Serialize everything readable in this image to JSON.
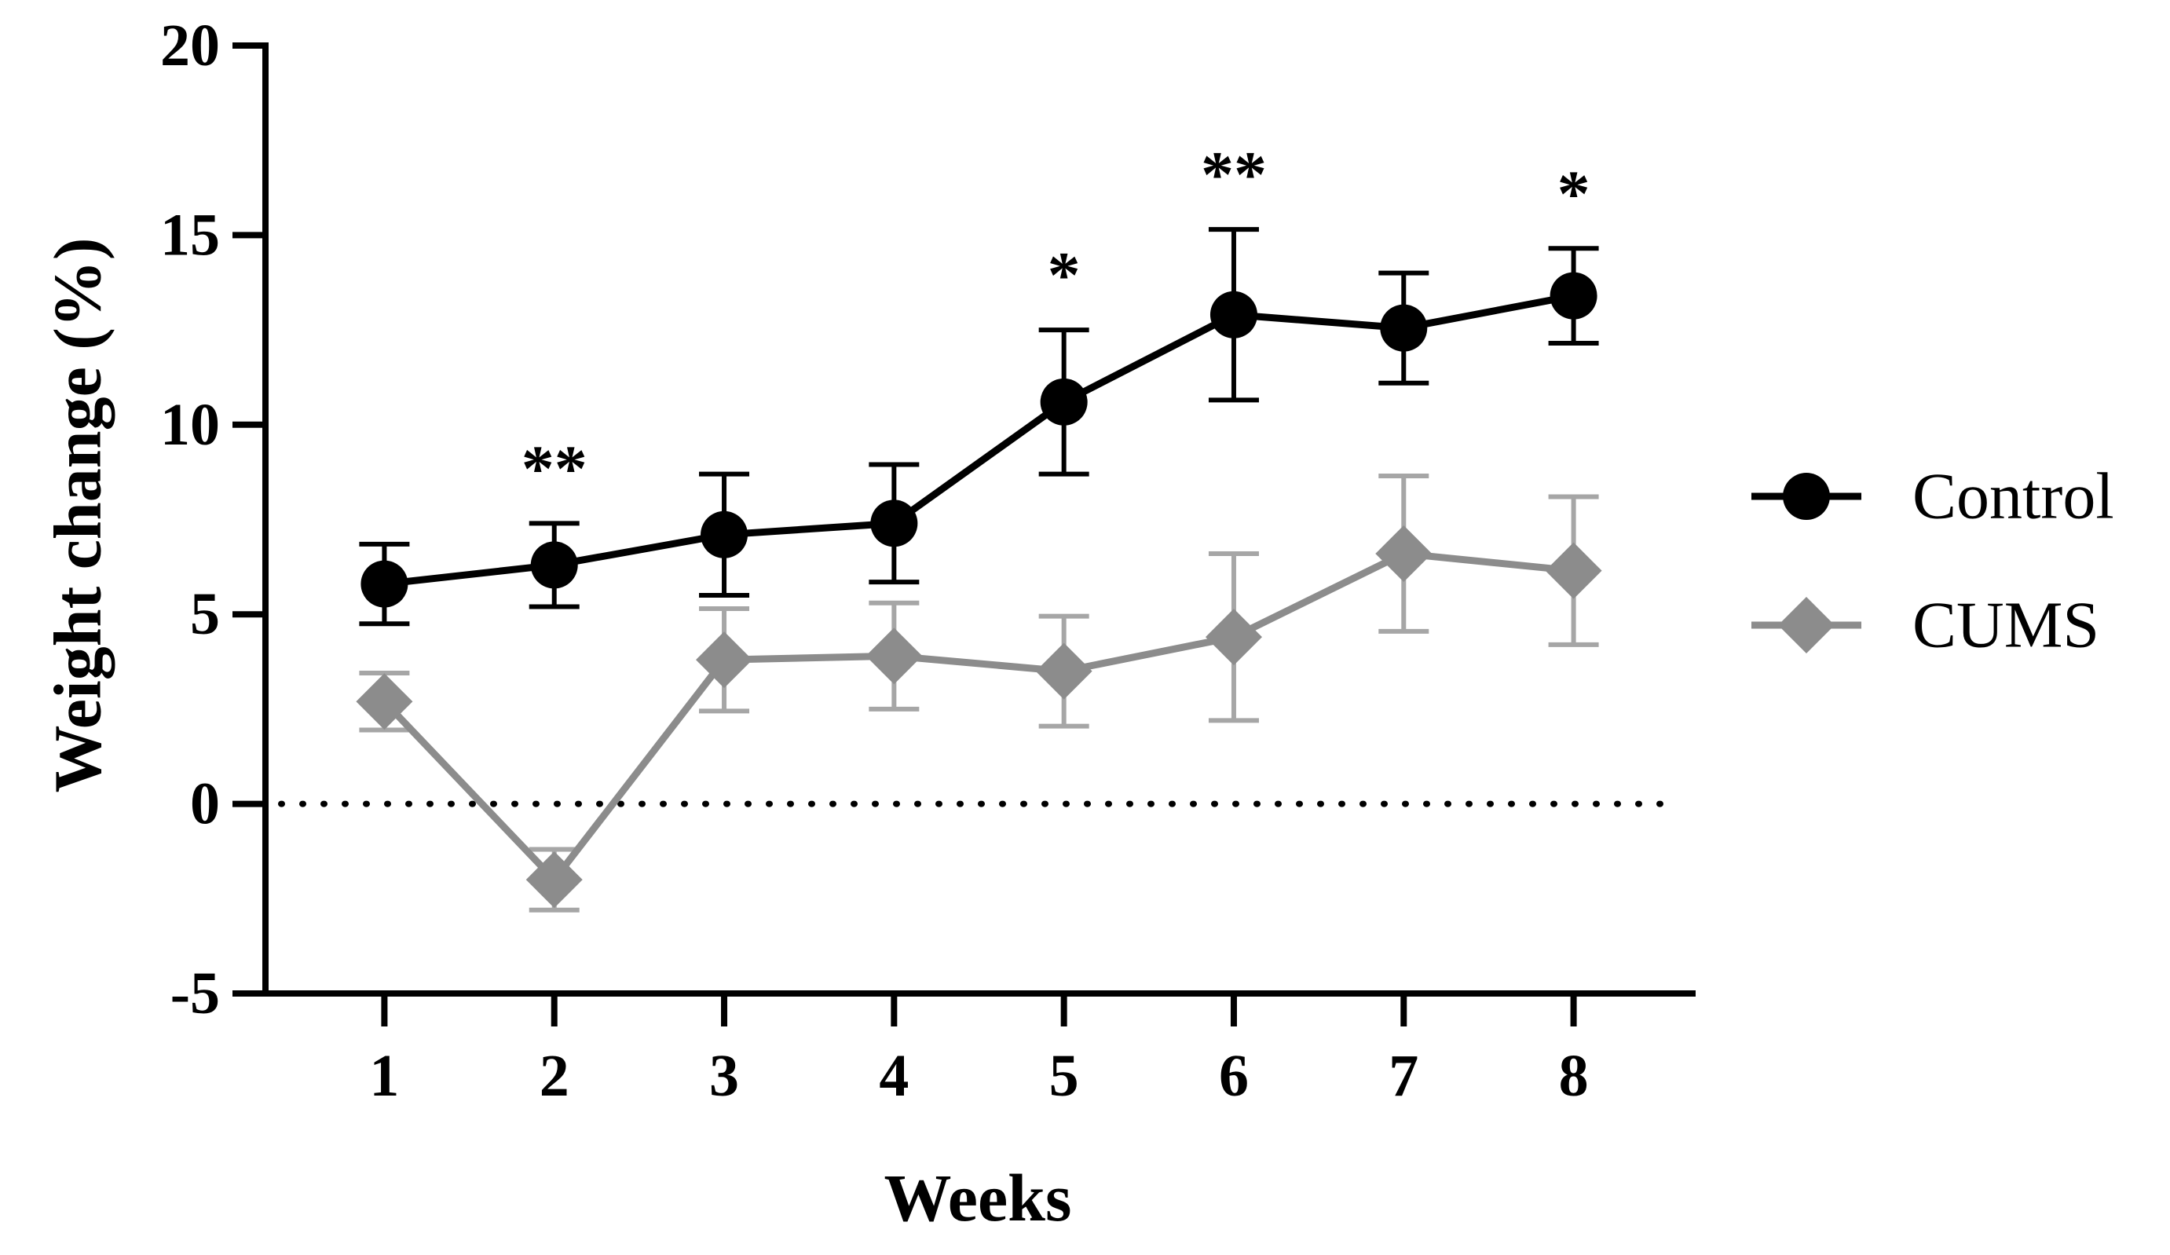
{
  "chart_data": {
    "type": "line",
    "title": "",
    "xlabel": "Weeks",
    "ylabel": "Weight change (%)",
    "x": [
      1,
      2,
      3,
      4,
      5,
      6,
      7,
      8
    ],
    "x_tick_labels": [
      "1",
      "2",
      "3",
      "4",
      "5",
      "6",
      "7",
      "8"
    ],
    "y_ticks": [
      -5,
      0,
      5,
      10,
      15,
      20
    ],
    "y_tick_labels": [
      "-5",
      "0",
      "5",
      "10",
      "15",
      "20"
    ],
    "ylim": [
      -5,
      20
    ],
    "xlim": [
      0.3,
      8.7
    ],
    "reference_line": {
      "y": 0,
      "style": "dotted"
    },
    "grid": false,
    "legend_position": "right",
    "series": [
      {
        "name": "Control",
        "marker": "circle",
        "color": "#000000",
        "error_color": "#000000",
        "values": [
          5.8,
          6.3,
          7.1,
          7.4,
          10.6,
          12.9,
          12.55,
          13.4
        ],
        "error": [
          1.05,
          1.1,
          1.6,
          1.55,
          1.9,
          2.25,
          1.45,
          1.25
        ]
      },
      {
        "name": "CUMS",
        "marker": "diamond",
        "color": "#8c8c8c",
        "error_color": "#a6a6a6",
        "values": [
          2.7,
          -2.0,
          3.8,
          3.9,
          3.5,
          4.4,
          6.6,
          6.15
        ],
        "error": [
          0.75,
          0.8,
          1.35,
          1.4,
          1.45,
          2.2,
          2.05,
          1.95
        ]
      }
    ],
    "annotations": [
      {
        "x": 2,
        "text": "**"
      },
      {
        "x": 5,
        "text": "*"
      },
      {
        "x": 6,
        "text": "**"
      },
      {
        "x": 8,
        "text": "*"
      }
    ]
  }
}
